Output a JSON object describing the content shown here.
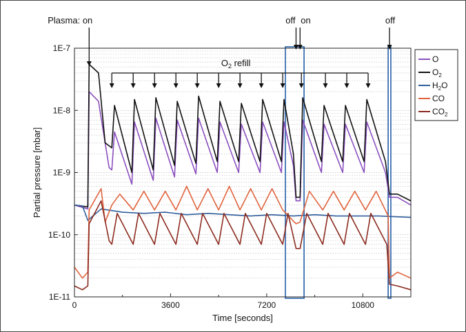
{
  "chart_data": {
    "type": "line",
    "xlabel": "Time [seconds]",
    "ylabel": "Partial pressure [mbar]",
    "x_ticks": [
      0,
      3600,
      7200,
      10800
    ],
    "x_tick_labels": [
      "0",
      "3600",
      "7200",
      "10800"
    ],
    "xlim": [
      0,
      12600
    ],
    "y_scale": "log",
    "ylim": [
      1e-11,
      1e-07
    ],
    "y_ticks": [
      1e-11,
      1e-10,
      1e-09,
      1e-08,
      1e-07
    ],
    "y_tick_labels": [
      "1E-11",
      "1E-10",
      "1E-9",
      "1E-8",
      "1E-7"
    ],
    "grid": "horizontal dotted",
    "legend_position": "right",
    "annotations": {
      "plasma_on": "Plasma: on",
      "off1": "off",
      "on2": "on",
      "off2": "off",
      "refill_prefix": "O",
      "refill_sub": "2",
      "refill_suffix": " refill",
      "plasma_on_time": 550,
      "off1_time": 8300,
      "on2_time": 8450,
      "off2_time": 11800,
      "refill_times": [
        1400,
        2200,
        3000,
        3800,
        4600,
        5400,
        6200,
        7000,
        7800,
        8500,
        9400,
        10200,
        11000
      ]
    },
    "highlight_boxes": [
      [
        7900,
        8600
      ],
      [
        11750,
        11850
      ]
    ],
    "series": [
      {
        "name": "O",
        "sub": "",
        "color": "#8a4fbe",
        "points": [
          [
            0,
            3e-10
          ],
          [
            500,
            2.6e-10
          ],
          [
            550,
            2e-08
          ],
          [
            900,
            1.4e-08
          ],
          [
            1150,
            3e-09
          ],
          [
            1300,
            1.2e-09
          ],
          [
            1400,
            1.1e-09
          ],
          [
            1500,
            4.5e-09
          ],
          [
            2150,
            6.5e-10
          ],
          [
            2250,
            6.5e-09
          ],
          [
            2950,
            7.5e-10
          ],
          [
            3050,
            7.5e-09
          ],
          [
            3750,
            8.5e-10
          ],
          [
            3850,
            7e-09
          ],
          [
            4550,
            9.5e-10
          ],
          [
            4650,
            7.5e-09
          ],
          [
            5350,
            1e-09
          ],
          [
            5450,
            6.5e-09
          ],
          [
            6150,
            1e-09
          ],
          [
            6250,
            6e-09
          ],
          [
            6950,
            1e-09
          ],
          [
            7050,
            6.5e-09
          ],
          [
            7750,
            1e-09
          ],
          [
            7850,
            6.5e-09
          ],
          [
            8200,
            1.3e-09
          ],
          [
            8300,
            3.5e-10
          ],
          [
            8450,
            3.5e-10
          ],
          [
            8550,
            7e-09
          ],
          [
            9250,
            1e-09
          ],
          [
            9350,
            6e-09
          ],
          [
            10050,
            1e-09
          ],
          [
            10150,
            6e-09
          ],
          [
            10850,
            1e-09
          ],
          [
            10950,
            6.5e-09
          ],
          [
            11650,
            1e-09
          ],
          [
            11800,
            4e-10
          ],
          [
            12100,
            4e-10
          ],
          [
            12600,
            3e-10
          ]
        ]
      },
      {
        "name": "O",
        "sub": "2",
        "color": "#111111",
        "points": [
          [
            0,
            3e-10
          ],
          [
            500,
            2.8e-10
          ],
          [
            550,
            5.5e-08
          ],
          [
            900,
            4e-08
          ],
          [
            1150,
            3e-09
          ],
          [
            1400,
            2.5e-09
          ],
          [
            1500,
            1.2e-08
          ],
          [
            2150,
            1e-09
          ],
          [
            2250,
            1.5e-08
          ],
          [
            2950,
            1.1e-09
          ],
          [
            3050,
            1.6e-08
          ],
          [
            3750,
            1.3e-09
          ],
          [
            3850,
            1.4e-08
          ],
          [
            4550,
            1.4e-09
          ],
          [
            4650,
            1.7e-08
          ],
          [
            5350,
            1.5e-09
          ],
          [
            5450,
            1.4e-08
          ],
          [
            6150,
            1.5e-09
          ],
          [
            6250,
            1.3e-08
          ],
          [
            6950,
            1.5e-09
          ],
          [
            7050,
            1.5e-08
          ],
          [
            7750,
            1.5e-09
          ],
          [
            7850,
            1.5e-08
          ],
          [
            8200,
            2e-09
          ],
          [
            8300,
            4e-10
          ],
          [
            8450,
            4e-10
          ],
          [
            8550,
            1.6e-08
          ],
          [
            9250,
            1.5e-09
          ],
          [
            9350,
            1.2e-08
          ],
          [
            10050,
            1.5e-09
          ],
          [
            10150,
            1.2e-08
          ],
          [
            10850,
            1.5e-09
          ],
          [
            10950,
            1.5e-08
          ],
          [
            11650,
            1.5e-09
          ],
          [
            11800,
            4.5e-10
          ],
          [
            12100,
            4.5e-10
          ],
          [
            12600,
            3.5e-10
          ]
        ]
      },
      {
        "name": "H",
        "sub": "2",
        "suffix": "O",
        "color": "#2f5d9c",
        "points": [
          [
            0,
            3e-10
          ],
          [
            300,
            2.9e-10
          ],
          [
            500,
            1.7e-10
          ],
          [
            1000,
            2.6e-10
          ],
          [
            1800,
            2.3e-10
          ],
          [
            2600,
            2.2e-10
          ],
          [
            3400,
            2.3e-10
          ],
          [
            4200,
            2.1e-10
          ],
          [
            5000,
            2.2e-10
          ],
          [
            5800,
            2.1e-10
          ],
          [
            6600,
            2e-10
          ],
          [
            7400,
            2.1e-10
          ],
          [
            8200,
            2e-10
          ],
          [
            9000,
            2.1e-10
          ],
          [
            9800,
            2e-10
          ],
          [
            10600,
            2e-10
          ],
          [
            11400,
            2e-10
          ],
          [
            12600,
            1.9e-10
          ]
        ]
      },
      {
        "name": "CO",
        "sub": "",
        "color": "#e0633c",
        "points": [
          [
            0,
            3e-11
          ],
          [
            300,
            2e-11
          ],
          [
            500,
            2.5e-11
          ],
          [
            550,
            2.5e-10
          ],
          [
            1000,
            5.5e-10
          ],
          [
            1150,
            1.6e-10
          ],
          [
            1400,
            3e-10
          ],
          [
            1700,
            4.5e-10
          ],
          [
            2200,
            2.5e-10
          ],
          [
            2600,
            5e-10
          ],
          [
            3000,
            2.5e-10
          ],
          [
            3400,
            5e-10
          ],
          [
            3800,
            2.5e-10
          ],
          [
            4200,
            6e-10
          ],
          [
            4600,
            2.5e-10
          ],
          [
            5000,
            5.5e-10
          ],
          [
            5400,
            2.5e-10
          ],
          [
            5800,
            6e-10
          ],
          [
            6200,
            2.5e-10
          ],
          [
            6600,
            5.5e-10
          ],
          [
            7000,
            2.5e-10
          ],
          [
            7400,
            5.5e-10
          ],
          [
            7800,
            2.5e-10
          ],
          [
            8300,
            1.5e-10
          ],
          [
            8450,
            1.6e-10
          ],
          [
            8800,
            5e-10
          ],
          [
            9300,
            2.5e-10
          ],
          [
            9700,
            5e-10
          ],
          [
            10100,
            2.5e-10
          ],
          [
            10500,
            5e-10
          ],
          [
            10900,
            2.5e-10
          ],
          [
            11300,
            5e-10
          ],
          [
            11750,
            2e-10
          ],
          [
            11800,
            2e-11
          ],
          [
            12100,
            2.5e-11
          ],
          [
            12600,
            2e-11
          ]
        ]
      },
      {
        "name": "CO",
        "sub": "2",
        "color": "#8b2a1e",
        "points": [
          [
            0,
            1.5e-11
          ],
          [
            300,
            1.3e-11
          ],
          [
            500,
            1.5e-11
          ],
          [
            550,
            1.5e-10
          ],
          [
            1000,
            3.5e-10
          ],
          [
            1300,
            8e-11
          ],
          [
            1400,
            7e-11
          ],
          [
            1600,
            2.2e-10
          ],
          [
            2200,
            7e-11
          ],
          [
            2400,
            2.2e-10
          ],
          [
            3000,
            7e-11
          ],
          [
            3200,
            2.2e-10
          ],
          [
            3800,
            7e-11
          ],
          [
            4000,
            2.2e-10
          ],
          [
            4600,
            7e-11
          ],
          [
            4800,
            2.2e-10
          ],
          [
            5400,
            7e-11
          ],
          [
            5600,
            2.2e-10
          ],
          [
            6200,
            7e-11
          ],
          [
            6400,
            2.2e-10
          ],
          [
            7000,
            7e-11
          ],
          [
            7200,
            2.2e-10
          ],
          [
            7800,
            7e-11
          ],
          [
            8000,
            2.2e-10
          ],
          [
            8300,
            6e-11
          ],
          [
            8450,
            6e-11
          ],
          [
            8700,
            2.2e-10
          ],
          [
            9300,
            7e-11
          ],
          [
            9500,
            2.2e-10
          ],
          [
            10100,
            7e-11
          ],
          [
            10300,
            2.2e-10
          ],
          [
            10900,
            7e-11
          ],
          [
            11100,
            2.2e-10
          ],
          [
            11700,
            7e-11
          ],
          [
            11800,
            1.6e-11
          ],
          [
            12100,
            1.5e-11
          ],
          [
            12600,
            1.3e-11
          ]
        ]
      }
    ]
  }
}
